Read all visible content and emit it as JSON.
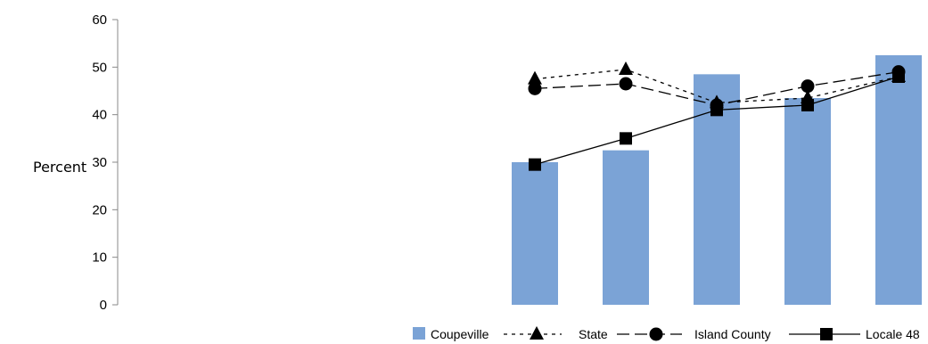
{
  "chart_data": {
    "type": "bar",
    "categories": [
      "",
      "",
      "",
      "",
      ""
    ],
    "ylabel": "Percent",
    "ylim": [
      0,
      60
    ],
    "yticks": [
      0,
      10,
      20,
      30,
      40,
      50,
      60
    ],
    "grid": false,
    "legend_position": "bottom-right",
    "bar_series": {
      "name": "Coupeville",
      "color": "#7ba3d6",
      "values": [
        30,
        32.5,
        48.5,
        43.5,
        52.5
      ]
    },
    "line_series": [
      {
        "name": "State",
        "style": "dashed-short",
        "marker": "triangle",
        "values": [
          47.5,
          49.5,
          42.5,
          43.5,
          48
        ]
      },
      {
        "name": "Island County",
        "style": "dashed-long",
        "marker": "circle",
        "values": [
          45.5,
          46.5,
          42,
          46,
          49
        ]
      },
      {
        "name": "Locale 48",
        "style": "solid",
        "marker": "square",
        "values": [
          29.5,
          35,
          41,
          42,
          48
        ]
      }
    ]
  }
}
